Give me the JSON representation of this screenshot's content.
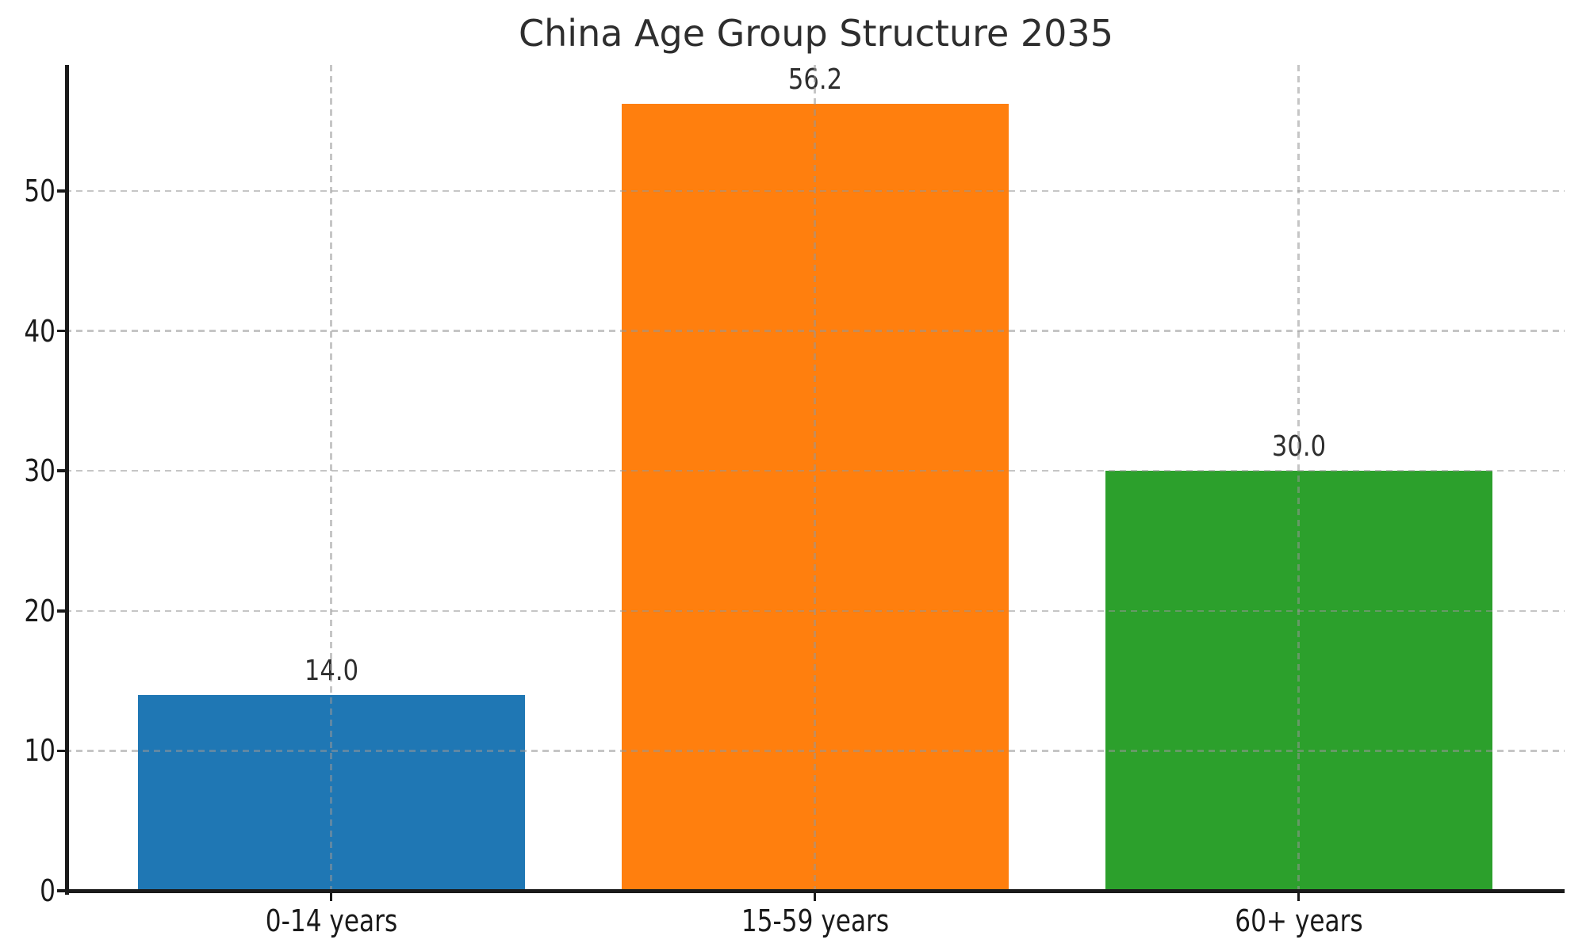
{
  "chart_data": {
    "type": "bar",
    "title": "China Age Group Structure 2035",
    "categories": [
      "0-14 years",
      "15-59 years",
      "60+ years"
    ],
    "values": [
      14.0,
      56.2,
      30.0
    ],
    "value_labels": [
      "14.0",
      "56.2",
      "30.0"
    ],
    "bar_colors": [
      "#1f77b4",
      "#ff7f0e",
      "#2ca02c"
    ],
    "y_ticks": [
      "0",
      "10",
      "20",
      "30",
      "40",
      "50"
    ],
    "y_tick_values": [
      0,
      10,
      20,
      30,
      40,
      50
    ],
    "ylim": [
      0,
      59
    ],
    "xlabel": "",
    "ylabel": "",
    "legend": "none",
    "grid": {
      "style": "dashed",
      "color": "#c8c8c8",
      "horizontal_at": [
        10,
        20,
        30,
        40,
        50
      ],
      "vertical_at_bar_centers": true,
      "drawn_over_bars": true
    },
    "axis_color": "#1a1a1a",
    "text_color": "#2e2e2e",
    "bar_width_fraction": 0.8
  }
}
